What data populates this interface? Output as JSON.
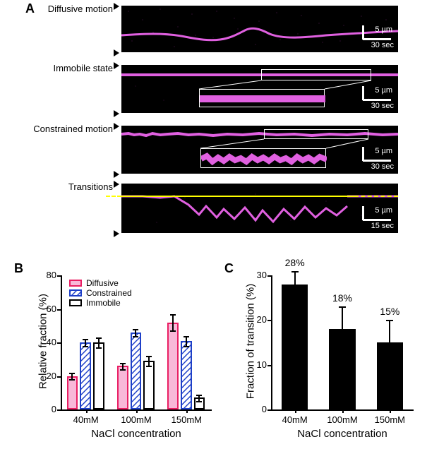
{
  "panelA": {
    "label": "A",
    "label_fontsize": 18,
    "rows": [
      {
        "name": "Diffusive motion",
        "scale_v": "5 µm",
        "scale_h": "30 sec"
      },
      {
        "name": "Immobile state",
        "scale_v": "5 µm",
        "scale_h": "30 sec"
      },
      {
        "name": "Constrained motion",
        "scale_v": "5 µm",
        "scale_h": "30 sec"
      },
      {
        "name": "Transitions",
        "scale_v": "5 µm",
        "scale_h": "15 sec"
      }
    ],
    "kymograph": {
      "background": "#000000",
      "trace_color": "#e060e0",
      "noise_color": "#b040b0",
      "inset_border": "#ffffff",
      "yellow_line": "#ffff00"
    },
    "row_label_fontsize": 13
  },
  "panelB": {
    "label": "B",
    "label_fontsize": 15,
    "type": "grouped_bar",
    "ylabel": "Relative fraction (%)",
    "xlabel": "NaCl concentration",
    "tick_fontsize": 13,
    "ylim": [
      0,
      80
    ],
    "ytick_step": 20,
    "categories": [
      "40mM",
      "100mM",
      "150mM"
    ],
    "series": [
      {
        "name": "Diffusive",
        "values": [
          20,
          26,
          52
        ],
        "err": [
          2,
          2,
          5
        ],
        "fill": "#f8b8d8",
        "stroke": "#e91e63",
        "hatch": false
      },
      {
        "name": "Constrained",
        "values": [
          40,
          46,
          41
        ],
        "err": [
          2,
          2,
          3
        ],
        "fill": "#ffffff",
        "stroke": "#1e40c8",
        "hatch": true,
        "hatch_color": "#1e40c8"
      },
      {
        "name": "Immobile",
        "values": [
          40,
          29,
          7
        ],
        "err": [
          3,
          3,
          2
        ],
        "fill": "#ffffff",
        "stroke": "#000000",
        "hatch": false
      }
    ],
    "bar_stroke_width": 2
  },
  "panelC": {
    "label": "C",
    "label_fontsize": 15,
    "type": "bar",
    "ylabel": "Fraction of transition (%)",
    "xlabel": "NaCl concentration",
    "tick_fontsize": 13,
    "ylim": [
      0,
      30
    ],
    "ytick_step": 10,
    "categories": [
      "40mM",
      "100mM",
      "150mM"
    ],
    "values": [
      28,
      18,
      15
    ],
    "err": [
      3,
      5,
      5
    ],
    "value_labels": [
      "28%",
      "18%",
      "15%"
    ],
    "bar_color": "#000000"
  }
}
